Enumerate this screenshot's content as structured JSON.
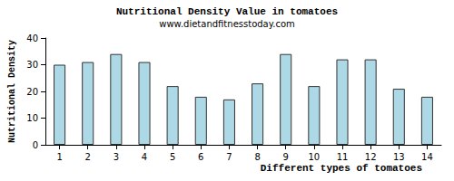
{
  "chart_data": {
    "type": "bar",
    "title": "Nutritional Density Value in tomatoes",
    "subtitle": "www.dietandfitnesstoday.com",
    "x_label": "Different types of tomatoes",
    "y_label": "Nutritional Density",
    "categories": [
      "1",
      "2",
      "3",
      "4",
      "5",
      "6",
      "7",
      "8",
      "9",
      "10",
      "11",
      "12",
      "13",
      "14"
    ],
    "values": [
      30,
      31,
      34,
      31,
      22,
      18,
      17,
      23,
      34,
      22,
      32,
      32,
      21,
      18
    ],
    "color": "#add8e6",
    "ylim": [
      0,
      40
    ],
    "yticks": [
      0,
      10,
      20,
      30,
      40
    ],
    "grid": false
  }
}
